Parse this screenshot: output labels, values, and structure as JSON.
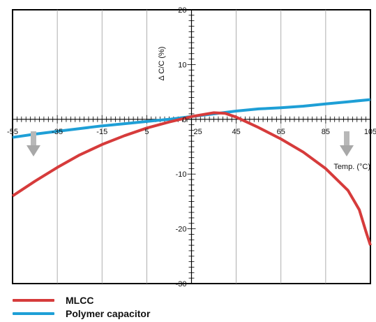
{
  "chart_data": {
    "type": "line",
    "xlabel": "Temp. (°C)",
    "ylabel": "Δ C/C (%)",
    "xlim": [
      -55,
      105
    ],
    "ylim": [
      -30,
      20
    ],
    "x_ticks": [
      -55,
      -35,
      -15,
      5,
      25,
      45,
      65,
      85,
      105
    ],
    "y_ticks": [
      20,
      10,
      0,
      -10,
      -20,
      -30
    ],
    "grid": true,
    "legend_position": "bottom-left",
    "series": [
      {
        "name": "MLCC",
        "color": "#d63b3b",
        "points": [
          [
            -55,
            -14
          ],
          [
            -45,
            -11.3
          ],
          [
            -35,
            -8.8
          ],
          [
            -25,
            -6.5
          ],
          [
            -15,
            -4.6
          ],
          [
            -5,
            -3.0
          ],
          [
            5,
            -1.6
          ],
          [
            15,
            -0.5
          ],
          [
            25,
            0.5
          ],
          [
            35,
            1.2
          ],
          [
            40,
            1.1
          ],
          [
            45,
            0.4
          ],
          [
            55,
            -1.5
          ],
          [
            65,
            -3.6
          ],
          [
            75,
            -6.0
          ],
          [
            85,
            -9.0
          ],
          [
            95,
            -13.0
          ],
          [
            100,
            -16.5
          ],
          [
            103,
            -20.5
          ],
          [
            105,
            -23
          ]
        ]
      },
      {
        "name": "Polymer capacitor",
        "color": "#1e9fd6",
        "points": [
          [
            -55,
            -3.3
          ],
          [
            -45,
            -2.7
          ],
          [
            -35,
            -2.2
          ],
          [
            -25,
            -1.7
          ],
          [
            -15,
            -1.2
          ],
          [
            -5,
            -0.8
          ],
          [
            5,
            -0.4
          ],
          [
            15,
            0.0
          ],
          [
            25,
            0.5
          ],
          [
            35,
            1.0
          ],
          [
            45,
            1.5
          ],
          [
            55,
            1.9
          ],
          [
            65,
            2.1
          ],
          [
            75,
            2.4
          ],
          [
            85,
            2.8
          ],
          [
            95,
            3.2
          ],
          [
            105,
            3.6
          ]
        ]
      }
    ]
  },
  "legend": {
    "items": [
      {
        "label": "MLCC",
        "color": "#d63b3b"
      },
      {
        "label": "Polymer capacitor",
        "color": "#1e9fd6"
      }
    ]
  }
}
